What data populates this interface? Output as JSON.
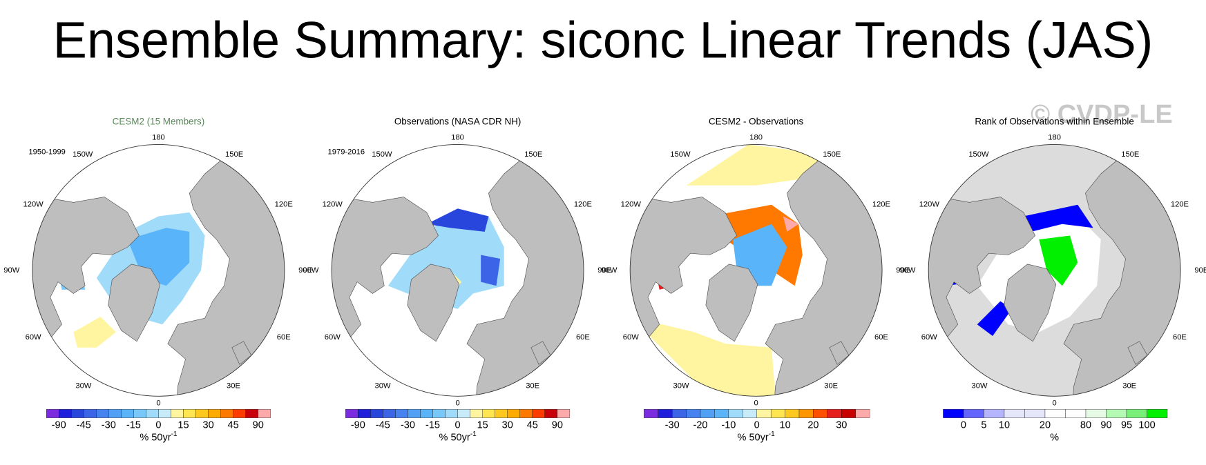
{
  "title": "Ensemble Summary: siconc Linear Trends (JAS)",
  "watermark": "© CVDP-LE",
  "longitude_labels": [
    "180",
    "150E",
    "120E",
    "90E",
    "60E",
    "30E",
    "0",
    "30W",
    "60W",
    "90W",
    "120W",
    "150W"
  ],
  "panels": [
    {
      "title": "CESM2 (15 Members)",
      "period": "1950-1999",
      "colorbar": {
        "colors": [
          "#7b2ce0",
          "#1e1edc",
          "#2846dc",
          "#3c64e6",
          "#4682f0",
          "#50a0f5",
          "#5ab4fa",
          "#78c8fa",
          "#a0dcfa",
          "#c8ebfa",
          "#fff5a0",
          "#ffe650",
          "#ffc81e",
          "#ffaa00",
          "#ff7800",
          "#ff3c00",
          "#c8000a",
          "#ffaaaa"
        ],
        "labels": [
          -90,
          -45,
          -30,
          -15,
          0,
          15,
          30,
          45,
          90
        ]
      },
      "unit": "% 50yr",
      "unit_exponent": "-1"
    },
    {
      "title": "Observations (NASA CDR NH)",
      "period": "1979-2016",
      "colorbar": {
        "colors": [
          "#7b2ce0",
          "#1e1edc",
          "#2846dc",
          "#3c64e6",
          "#4682f0",
          "#50a0f5",
          "#5ab4fa",
          "#78c8fa",
          "#a0dcfa",
          "#c8ebfa",
          "#fff5a0",
          "#ffe650",
          "#ffc81e",
          "#ffaa00",
          "#ff7800",
          "#ff3c00",
          "#c8000a",
          "#ffaaaa"
        ],
        "labels": [
          -90,
          -45,
          -30,
          -15,
          0,
          15,
          30,
          45,
          90
        ]
      },
      "unit": "% 50yr",
      "unit_exponent": "-1"
    },
    {
      "title": "CESM2 - Observations",
      "colorbar": {
        "colors": [
          "#7b2ce0",
          "#1e1edc",
          "#3c64e6",
          "#4682f0",
          "#50a0f5",
          "#5ab4fa",
          "#a0dcfa",
          "#c8ebfa",
          "#fff5a0",
          "#ffe650",
          "#ffc81e",
          "#ff9600",
          "#ff5000",
          "#e61e1e",
          "#c80000",
          "#ffaaaa"
        ],
        "labels": [
          -30,
          -20,
          -10,
          0,
          10,
          20,
          30
        ]
      },
      "unit": "% 50yr",
      "unit_exponent": "-1"
    },
    {
      "title": "Rank of Observations within Ensemble",
      "colorbar": {
        "colors": [
          "#0000ff",
          "#6464ff",
          "#b4b4ff",
          "#e6e6fa",
          "#e6e6fa",
          "#ffffff",
          "#ffffff",
          "#e6fae6",
          "#b4fab4",
          "#78f078",
          "#00f000"
        ],
        "labels": [
          0,
          5,
          10,
          20,
          80,
          90,
          95,
          100
        ]
      },
      "unit": "%"
    }
  ]
}
